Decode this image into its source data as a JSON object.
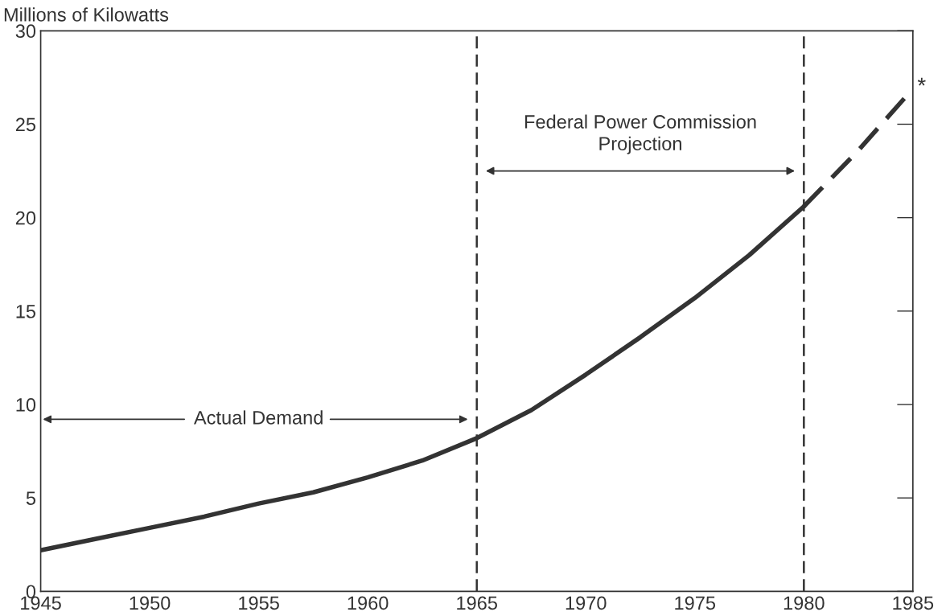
{
  "chart_data": {
    "type": "line",
    "ylabel": "Millions of Kilowatts",
    "xlim": [
      1945,
      1985
    ],
    "xticks": [
      1945,
      1950,
      1955,
      1960,
      1965,
      1970,
      1975,
      1980,
      1985
    ],
    "ylim": [
      0,
      30
    ],
    "yticks": [
      0,
      5,
      10,
      15,
      20,
      25,
      30
    ],
    "grid": false,
    "legend": false,
    "marker": "none",
    "series": [
      {
        "color": "#333333",
        "line_style": "solid",
        "x": [
          1945,
          1947.5,
          1950,
          1952.5,
          1955,
          1957.5,
          1960,
          1962.5,
          1965,
          1967.5,
          1970,
          1972.5,
          1975,
          1977.5,
          1980
        ],
        "values": [
          2.2,
          2.8,
          3.4,
          4.0,
          4.7,
          5.3,
          6.1,
          7.0,
          8.2,
          9.7,
          11.6,
          13.6,
          15.7,
          18.0,
          20.6
        ]
      },
      {
        "color": "#333333",
        "line_style": "dashed",
        "x": [
          1980,
          1982.5,
          1985
        ],
        "values": [
          20.6,
          23.6,
          26.9
        ]
      }
    ],
    "ref_lines": [
      {
        "axis": "x",
        "value": 1965,
        "line_style": "dashed",
        "color": "#333333"
      },
      {
        "axis": "x",
        "value": 1980,
        "line_style": "dashed",
        "color": "#333333"
      }
    ],
    "annotations": [
      "Actual Demand",
      "Federal Power Commission\nProjection",
      {
        "text": "*",
        "x": 1985,
        "y": 26.9
      }
    ]
  }
}
